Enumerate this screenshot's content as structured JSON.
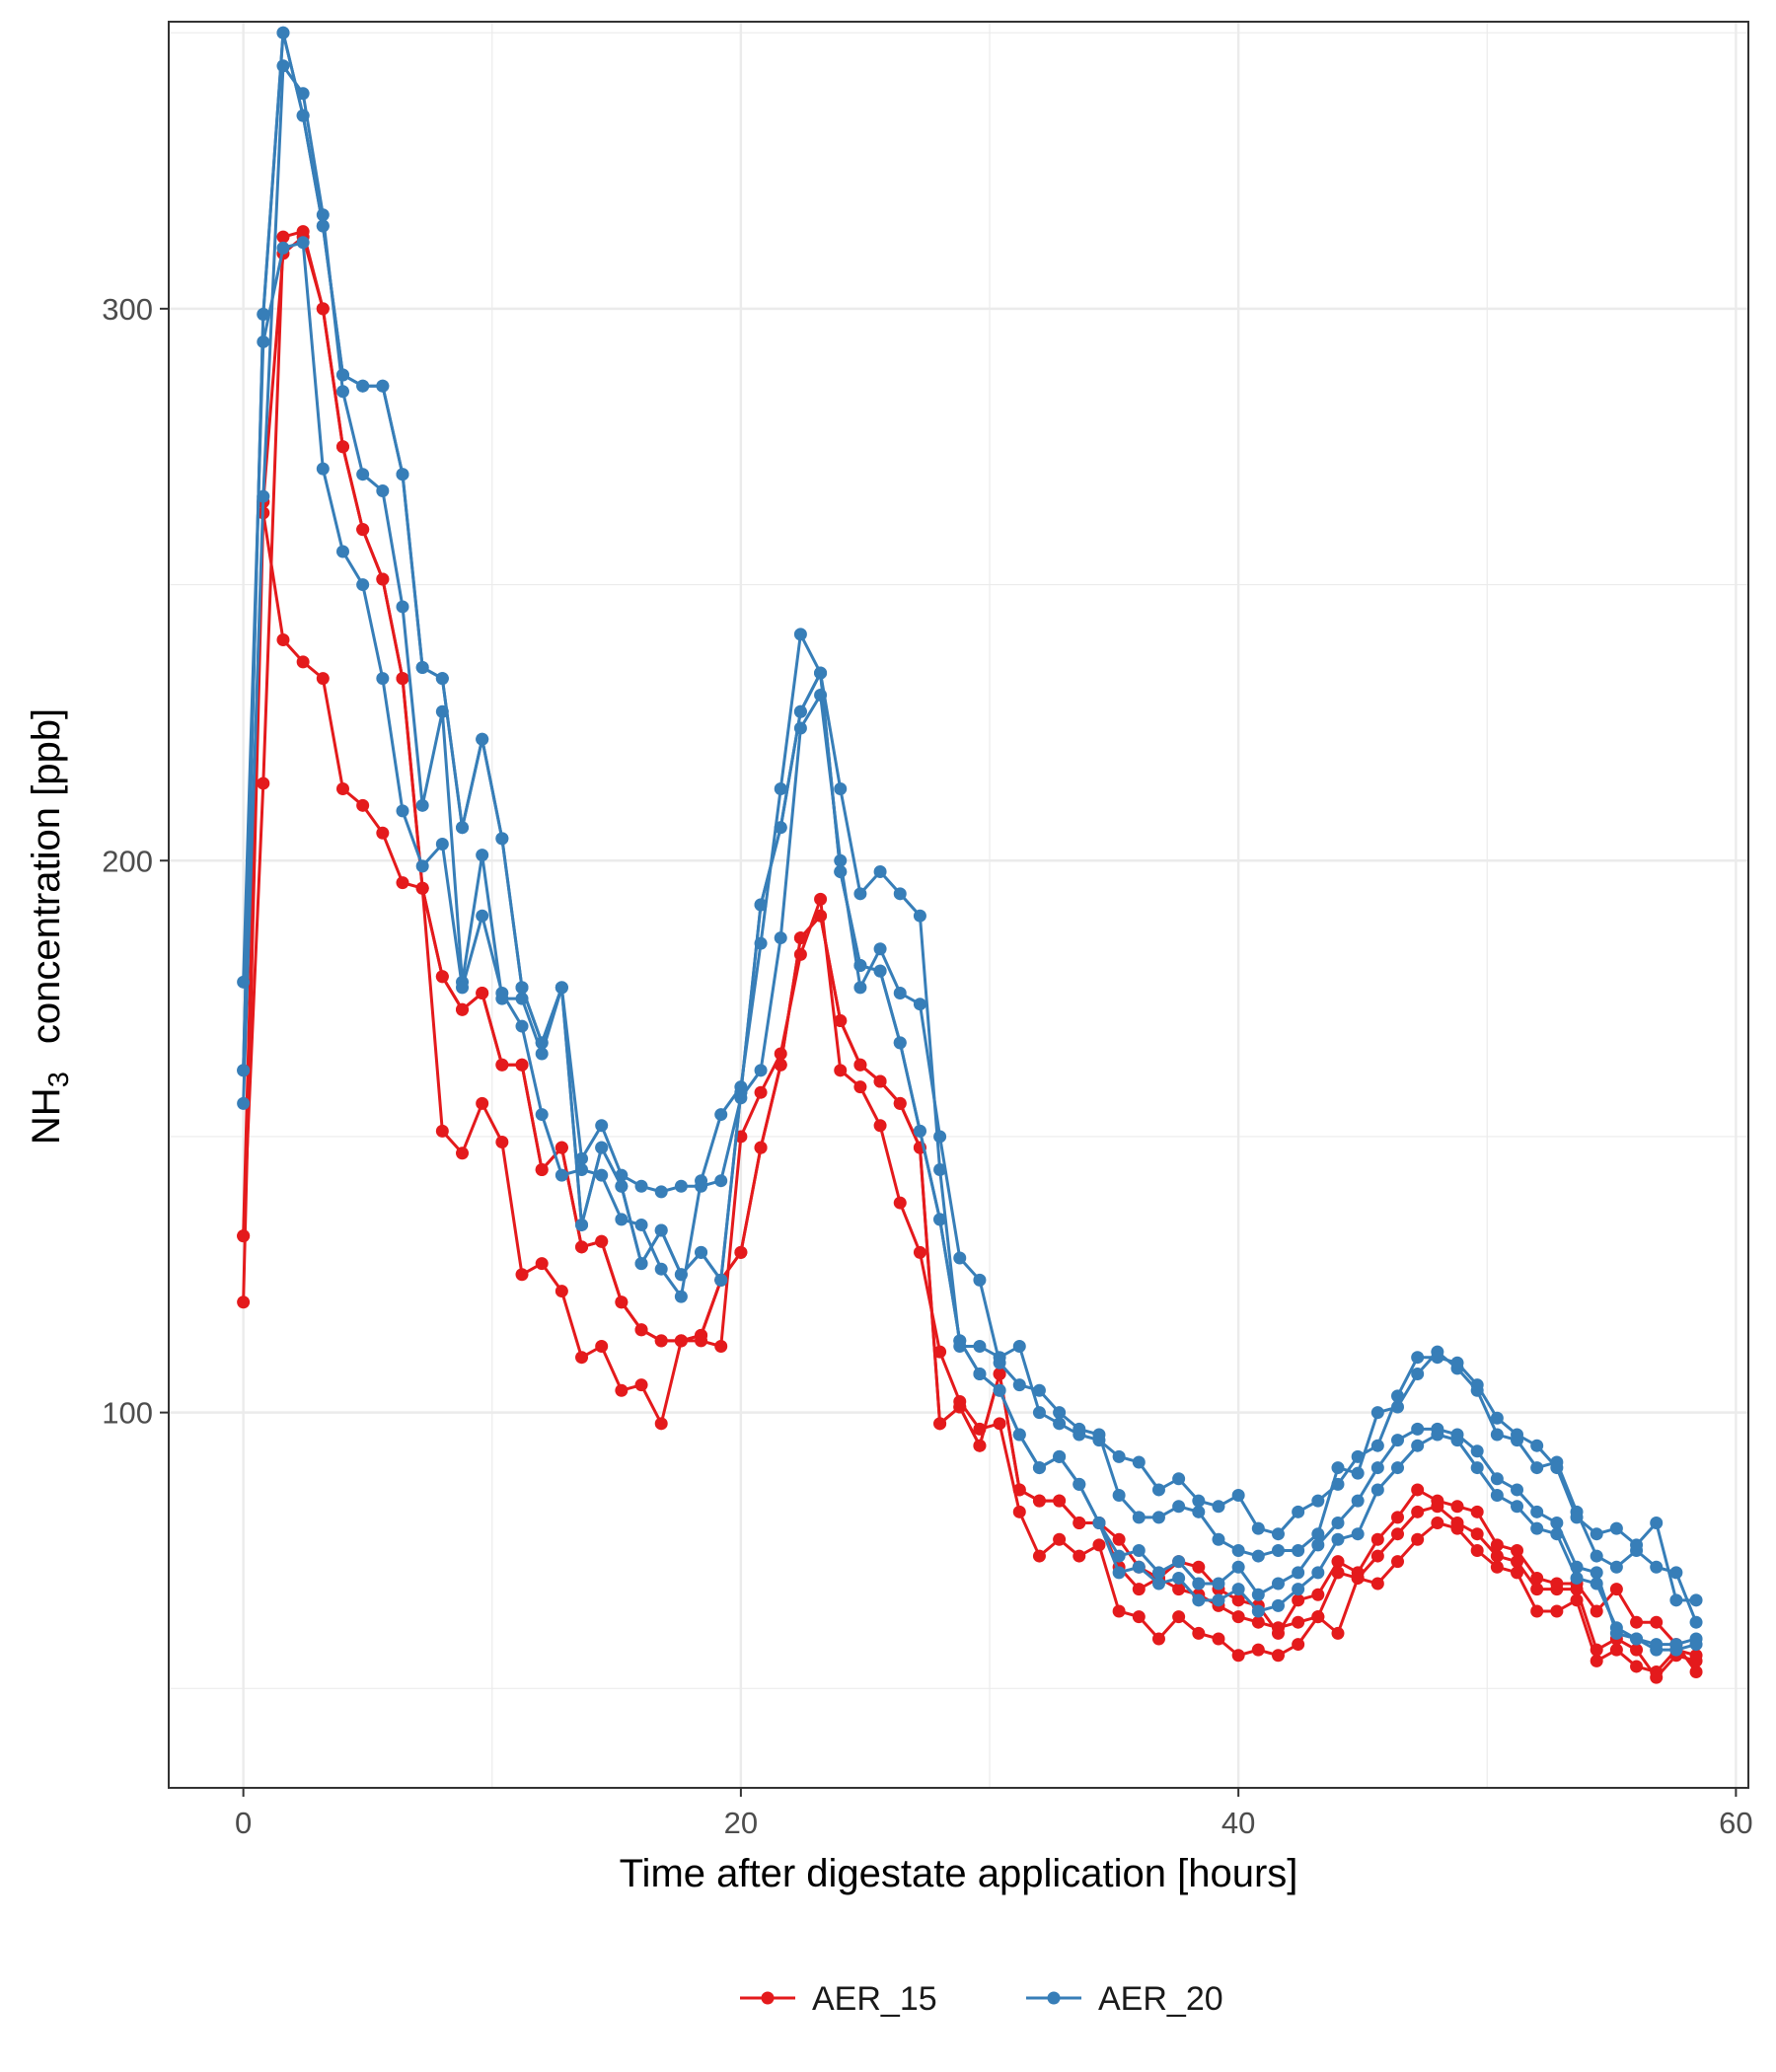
{
  "chart_data": {
    "type": "line",
    "xlabel": "Time after digestate application [hours]",
    "ylabel": {
      "main": "NH",
      "sub": "3",
      "rest": "concentration [ppb]"
    },
    "xlim": [
      -3.0,
      60.5
    ],
    "ylim": [
      32,
      352
    ],
    "x_ticks": [
      0,
      20,
      40,
      60
    ],
    "x_tick_labels": [
      "0",
      "20",
      "40",
      "60"
    ],
    "y_ticks": [
      100,
      200,
      300
    ],
    "y_tick_labels": [
      "100",
      "200",
      "300"
    ],
    "grid": true,
    "legend_position": "bottom",
    "colors": {
      "AER_15": "#E41A1C",
      "AER_20": "#377EB8"
    },
    "legend": [
      {
        "label": "AER_15",
        "series": "AER_15"
      },
      {
        "label": "AER_20",
        "series": "AER_20"
      }
    ],
    "x": [
      0,
      0.8,
      1.6,
      2.4,
      3.2,
      4.0,
      4.8,
      5.6,
      6.4,
      7.2,
      8.0,
      8.8,
      9.6,
      10.4,
      11.2,
      12.0,
      12.8,
      13.6,
      14.4,
      15.2,
      16.0,
      16.8,
      17.6,
      18.4,
      19.2,
      20.0,
      20.8,
      21.6,
      22.4,
      23.2,
      24.0,
      24.8,
      25.6,
      26.4,
      27.2,
      28.0,
      28.8,
      29.6,
      30.4,
      31.2,
      32.0,
      32.8,
      33.6,
      34.4,
      35.2,
      36.0,
      36.8,
      37.6,
      38.4,
      39.2,
      40.0,
      40.8,
      41.6,
      42.4,
      43.2,
      44.0,
      44.8,
      45.6,
      46.4,
      47.2,
      48.0,
      48.8,
      49.6,
      50.4,
      51.2,
      52.0,
      52.8,
      53.6,
      54.4,
      55.2,
      56.0,
      56.8,
      57.6,
      58.4
    ],
    "series": [
      {
        "group": "AER_15",
        "values": [
          132,
          265,
          310,
          313,
          300,
          275,
          260,
          251,
          233,
          195,
          179,
          173,
          176,
          163,
          163,
          144,
          148,
          130,
          131,
          120,
          115,
          113,
          113,
          114,
          124,
          129,
          148,
          163,
          186,
          190,
          171,
          163,
          160,
          156,
          148,
          98,
          101,
          94,
          107,
          86,
          84,
          84,
          80,
          80,
          77,
          72,
          70,
          73,
          72,
          68,
          66,
          65,
          60,
          66,
          67,
          73,
          71,
          77,
          81,
          86,
          84,
          83,
          82,
          76,
          75,
          70,
          69,
          69,
          64,
          68,
          62,
          62,
          58,
          53
        ]
      },
      {
        "group": "AER_15",
        "values": [
          120,
          263,
          240,
          236,
          233,
          213,
          210,
          205,
          196,
          195,
          151,
          147,
          156,
          149,
          125,
          127,
          122,
          110,
          112,
          104,
          105,
          98,
          113,
          113,
          112,
          150,
          158,
          165,
          183,
          193,
          162,
          159,
          152,
          138,
          129,
          111,
          102,
          97,
          98,
          82,
          74,
          77,
          74,
          76,
          64,
          63,
          59,
          63,
          60,
          59,
          56,
          57,
          56,
          58,
          63,
          60,
          70,
          69,
          73,
          77,
          80,
          79,
          75,
          72,
          71,
          64,
          64,
          66,
          55,
          57,
          54,
          53,
          57,
          56
        ]
      },
      {
        "group": "AER_15",
        "values": [
          132,
          214,
          313,
          314,
          300,
          275,
          260,
          251,
          233,
          195,
          179,
          173,
          176,
          163,
          163,
          144,
          148,
          130,
          131,
          120,
          115,
          113,
          113,
          114,
          124,
          129,
          148,
          163,
          186,
          190,
          171,
          163,
          160,
          156,
          148,
          98,
          101,
          94,
          107,
          86,
          84,
          84,
          80,
          80,
          72,
          68,
          70,
          68,
          67,
          65,
          63,
          62,
          61,
          62,
          63,
          71,
          70,
          74,
          78,
          82,
          83,
          80,
          78,
          74,
          73,
          68,
          68,
          68,
          57,
          59,
          57,
          52,
          56,
          55
        ]
      },
      {
        "group": "AER_20",
        "values": [
          156,
          266,
          344,
          339,
          317,
          285,
          270,
          267,
          246,
          210,
          227,
          178,
          201,
          175,
          175,
          165,
          177,
          146,
          152,
          143,
          141,
          140,
          141,
          141,
          142,
          157,
          162,
          186,
          224,
          230,
          200,
          177,
          184,
          176,
          174,
          150,
          128,
          124,
          109,
          105,
          104,
          100,
          97,
          96,
          85,
          81,
          81,
          83,
          82,
          77,
          75,
          74,
          75,
          75,
          78,
          90,
          89,
          100,
          101,
          107,
          111,
          108,
          104,
          96,
          95,
          90,
          91,
          82,
          74,
          72,
          75,
          72,
          71,
          62
        ]
      },
      {
        "group": "AER_20",
        "values": [
          178,
          294,
          311,
          312,
          271,
          256,
          250,
          233,
          209,
          199,
          203,
          177,
          190,
          176,
          170,
          154,
          143,
          144,
          143,
          135,
          134,
          126,
          121,
          142,
          154,
          159,
          185,
          213,
          241,
          234,
          213,
          194,
          198,
          194,
          190,
          144,
          112,
          112,
          110,
          112,
          100,
          98,
          96,
          95,
          92,
          91,
          86,
          88,
          84,
          83,
          85,
          79,
          78,
          82,
          84,
          87,
          92,
          94,
          103,
          110,
          110,
          109,
          105,
          99,
          96,
          94,
          90,
          81,
          78,
          79,
          76,
          80,
          66,
          66
        ]
      },
      {
        "group": "AER_20",
        "values": [
          162,
          299,
          350,
          335,
          315,
          288,
          286,
          286,
          270,
          235,
          233,
          206,
          222,
          204,
          177,
          167,
          177,
          134,
          148,
          141,
          127,
          133,
          125,
          129,
          124,
          158,
          192,
          206,
          227,
          234,
          198,
          181,
          180,
          167,
          151,
          135,
          113,
          107,
          104,
          96,
          90,
          92,
          87,
          80,
          74,
          75,
          71,
          73,
          69,
          69,
          72,
          67,
          69,
          71,
          76,
          80,
          84,
          90,
          95,
          97,
          97,
          96,
          93,
          88,
          86,
          82,
          80,
          72,
          71,
          60,
          59,
          57,
          57,
          58
        ]
      },
      {
        "group": "AER_20",
        "values": [
          162,
          299,
          350,
          335,
          315,
          288,
          286,
          286,
          270,
          235,
          233,
          206,
          222,
          204,
          177,
          167,
          177,
          134,
          148,
          141,
          127,
          133,
          125,
          129,
          124,
          158,
          192,
          206,
          227,
          234,
          198,
          181,
          180,
          167,
          151,
          135,
          113,
          107,
          104,
          96,
          90,
          92,
          87,
          80,
          71,
          72,
          69,
          70,
          66,
          66,
          68,
          64,
          65,
          68,
          71,
          77,
          78,
          86,
          90,
          94,
          96,
          95,
          90,
          85,
          83,
          79,
          78,
          70,
          69,
          61,
          59,
          58,
          58,
          59
        ]
      }
    ]
  }
}
